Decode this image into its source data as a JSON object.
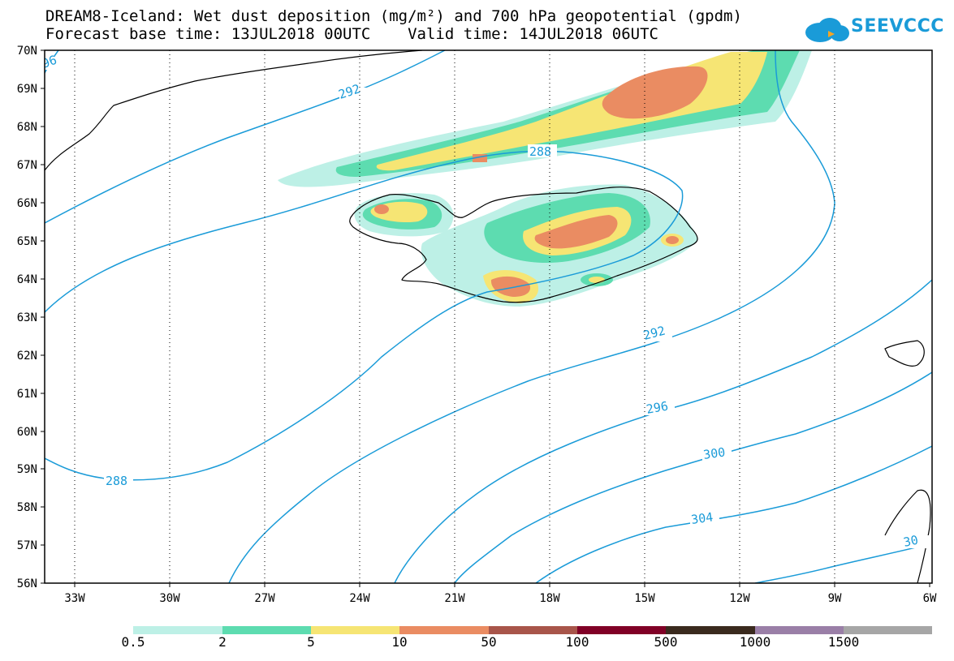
{
  "header": {
    "title_line1": "DREAM8-Iceland: Wet dust deposition (mg/m²) and 700 hPa geopotential (gpdm)",
    "title_line2": "Forecast base time: 13JUL2018 00UTC    Valid time: 14JUL2018 06UTC"
  },
  "logo": {
    "text": "SEEVCCC",
    "icon": "cloud-icon",
    "color": "#1a9bd8"
  },
  "map": {
    "latitude_labels": [
      "70N",
      "69N",
      "68N",
      "67N",
      "66N",
      "65N",
      "64N",
      "63N",
      "62N",
      "61N",
      "60N",
      "59N",
      "58N",
      "57N",
      "56N"
    ],
    "longitude_labels": [
      "33W",
      "30W",
      "27W",
      "24W",
      "21W",
      "18W",
      "15W",
      "12W",
      "9W",
      "6W"
    ],
    "contour_color": "#1a9bd8",
    "contour_labels": [
      {
        "id": "c296-edge",
        "text": "96"
      },
      {
        "id": "c292-a",
        "text": "292"
      },
      {
        "id": "c288-a",
        "text": "288"
      },
      {
        "id": "c292-b",
        "text": "292"
      },
      {
        "id": "c296-a",
        "text": "296"
      },
      {
        "id": "c288-b",
        "text": "288"
      },
      {
        "id": "c300-a",
        "text": "300"
      },
      {
        "id": "c304-a",
        "text": "304"
      },
      {
        "id": "c308-edge",
        "text": "30"
      }
    ]
  },
  "legend": {
    "colors": [
      "#bdf0e6",
      "#5ddcb0",
      "#f6e574",
      "#ea8c62",
      "#a8554a",
      "#800026",
      "#3a2a1e",
      "#9a7fa7",
      "#a6a6a6"
    ],
    "labels": [
      "0.5",
      "2",
      "5",
      "10",
      "50",
      "100",
      "500",
      "1000",
      "1500"
    ]
  }
}
